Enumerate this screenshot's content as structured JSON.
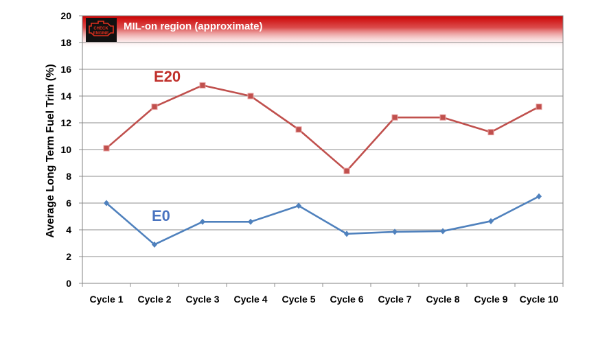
{
  "chart_data": {
    "type": "line",
    "categories": [
      "Cycle 1",
      "Cycle 2",
      "Cycle 3",
      "Cycle 4",
      "Cycle 5",
      "Cycle 6",
      "Cycle 7",
      "Cycle 8",
      "Cycle 9",
      "Cycle 10"
    ],
    "series": [
      {
        "name": "E20",
        "color": "#c0504d",
        "marker": "square",
        "values": [
          10.1,
          13.2,
          14.8,
          14.0,
          11.5,
          8.4,
          12.4,
          12.4,
          11.3,
          13.2
        ]
      },
      {
        "name": "E0",
        "color": "#4f81bd",
        "marker": "diamond",
        "values": [
          6.0,
          2.9,
          4.6,
          4.6,
          5.8,
          3.7,
          3.85,
          3.9,
          4.65,
          6.5
        ]
      }
    ],
    "ylabel": "Average Long Term Fuel Trim (%)",
    "xlabel": "",
    "ylim": [
      0,
      20
    ],
    "yticks": [
      0,
      2,
      4,
      6,
      8,
      10,
      12,
      14,
      16,
      18,
      20
    ],
    "grid": true,
    "annotation": {
      "text": "MIL-on region  (approximate)",
      "range": [
        17.5,
        20
      ],
      "color": "#cc0000",
      "icon": "check-engine-icon",
      "icon_text": [
        "CHECK",
        "ENGINE"
      ]
    }
  }
}
